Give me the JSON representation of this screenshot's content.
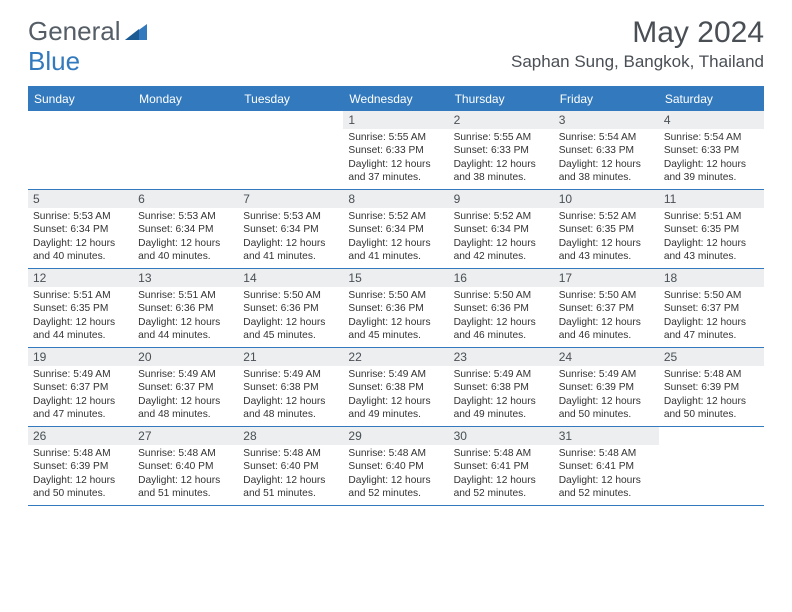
{
  "logo": {
    "general": "General",
    "blue": "Blue"
  },
  "title": "May 2024",
  "location": "Saphan Sung, Bangkok, Thailand",
  "colors": {
    "accent": "#3279bd",
    "header_text": "#ffffff",
    "daynum_bg": "#eceeef",
    "body_text": "#333333",
    "title_text": "#4a4f55"
  },
  "day_names": [
    "Sunday",
    "Monday",
    "Tuesday",
    "Wednesday",
    "Thursday",
    "Friday",
    "Saturday"
  ],
  "weeks": [
    [
      {
        "num": "",
        "lines": []
      },
      {
        "num": "",
        "lines": []
      },
      {
        "num": "",
        "lines": []
      },
      {
        "num": "1",
        "lines": [
          "Sunrise: 5:55 AM",
          "Sunset: 6:33 PM",
          "Daylight: 12 hours and 37 minutes."
        ]
      },
      {
        "num": "2",
        "lines": [
          "Sunrise: 5:55 AM",
          "Sunset: 6:33 PM",
          "Daylight: 12 hours and 38 minutes."
        ]
      },
      {
        "num": "3",
        "lines": [
          "Sunrise: 5:54 AM",
          "Sunset: 6:33 PM",
          "Daylight: 12 hours and 38 minutes."
        ]
      },
      {
        "num": "4",
        "lines": [
          "Sunrise: 5:54 AM",
          "Sunset: 6:33 PM",
          "Daylight: 12 hours and 39 minutes."
        ]
      }
    ],
    [
      {
        "num": "5",
        "lines": [
          "Sunrise: 5:53 AM",
          "Sunset: 6:34 PM",
          "Daylight: 12 hours and 40 minutes."
        ]
      },
      {
        "num": "6",
        "lines": [
          "Sunrise: 5:53 AM",
          "Sunset: 6:34 PM",
          "Daylight: 12 hours and 40 minutes."
        ]
      },
      {
        "num": "7",
        "lines": [
          "Sunrise: 5:53 AM",
          "Sunset: 6:34 PM",
          "Daylight: 12 hours and 41 minutes."
        ]
      },
      {
        "num": "8",
        "lines": [
          "Sunrise: 5:52 AM",
          "Sunset: 6:34 PM",
          "Daylight: 12 hours and 41 minutes."
        ]
      },
      {
        "num": "9",
        "lines": [
          "Sunrise: 5:52 AM",
          "Sunset: 6:34 PM",
          "Daylight: 12 hours and 42 minutes."
        ]
      },
      {
        "num": "10",
        "lines": [
          "Sunrise: 5:52 AM",
          "Sunset: 6:35 PM",
          "Daylight: 12 hours and 43 minutes."
        ]
      },
      {
        "num": "11",
        "lines": [
          "Sunrise: 5:51 AM",
          "Sunset: 6:35 PM",
          "Daylight: 12 hours and 43 minutes."
        ]
      }
    ],
    [
      {
        "num": "12",
        "lines": [
          "Sunrise: 5:51 AM",
          "Sunset: 6:35 PM",
          "Daylight: 12 hours and 44 minutes."
        ]
      },
      {
        "num": "13",
        "lines": [
          "Sunrise: 5:51 AM",
          "Sunset: 6:36 PM",
          "Daylight: 12 hours and 44 minutes."
        ]
      },
      {
        "num": "14",
        "lines": [
          "Sunrise: 5:50 AM",
          "Sunset: 6:36 PM",
          "Daylight: 12 hours and 45 minutes."
        ]
      },
      {
        "num": "15",
        "lines": [
          "Sunrise: 5:50 AM",
          "Sunset: 6:36 PM",
          "Daylight: 12 hours and 45 minutes."
        ]
      },
      {
        "num": "16",
        "lines": [
          "Sunrise: 5:50 AM",
          "Sunset: 6:36 PM",
          "Daylight: 12 hours and 46 minutes."
        ]
      },
      {
        "num": "17",
        "lines": [
          "Sunrise: 5:50 AM",
          "Sunset: 6:37 PM",
          "Daylight: 12 hours and 46 minutes."
        ]
      },
      {
        "num": "18",
        "lines": [
          "Sunrise: 5:50 AM",
          "Sunset: 6:37 PM",
          "Daylight: 12 hours and 47 minutes."
        ]
      }
    ],
    [
      {
        "num": "19",
        "lines": [
          "Sunrise: 5:49 AM",
          "Sunset: 6:37 PM",
          "Daylight: 12 hours and 47 minutes."
        ]
      },
      {
        "num": "20",
        "lines": [
          "Sunrise: 5:49 AM",
          "Sunset: 6:37 PM",
          "Daylight: 12 hours and 48 minutes."
        ]
      },
      {
        "num": "21",
        "lines": [
          "Sunrise: 5:49 AM",
          "Sunset: 6:38 PM",
          "Daylight: 12 hours and 48 minutes."
        ]
      },
      {
        "num": "22",
        "lines": [
          "Sunrise: 5:49 AM",
          "Sunset: 6:38 PM",
          "Daylight: 12 hours and 49 minutes."
        ]
      },
      {
        "num": "23",
        "lines": [
          "Sunrise: 5:49 AM",
          "Sunset: 6:38 PM",
          "Daylight: 12 hours and 49 minutes."
        ]
      },
      {
        "num": "24",
        "lines": [
          "Sunrise: 5:49 AM",
          "Sunset: 6:39 PM",
          "Daylight: 12 hours and 50 minutes."
        ]
      },
      {
        "num": "25",
        "lines": [
          "Sunrise: 5:48 AM",
          "Sunset: 6:39 PM",
          "Daylight: 12 hours and 50 minutes."
        ]
      }
    ],
    [
      {
        "num": "26",
        "lines": [
          "Sunrise: 5:48 AM",
          "Sunset: 6:39 PM",
          "Daylight: 12 hours and 50 minutes."
        ]
      },
      {
        "num": "27",
        "lines": [
          "Sunrise: 5:48 AM",
          "Sunset: 6:40 PM",
          "Daylight: 12 hours and 51 minutes."
        ]
      },
      {
        "num": "28",
        "lines": [
          "Sunrise: 5:48 AM",
          "Sunset: 6:40 PM",
          "Daylight: 12 hours and 51 minutes."
        ]
      },
      {
        "num": "29",
        "lines": [
          "Sunrise: 5:48 AM",
          "Sunset: 6:40 PM",
          "Daylight: 12 hours and 52 minutes."
        ]
      },
      {
        "num": "30",
        "lines": [
          "Sunrise: 5:48 AM",
          "Sunset: 6:41 PM",
          "Daylight: 12 hours and 52 minutes."
        ]
      },
      {
        "num": "31",
        "lines": [
          "Sunrise: 5:48 AM",
          "Sunset: 6:41 PM",
          "Daylight: 12 hours and 52 minutes."
        ]
      },
      {
        "num": "",
        "lines": []
      }
    ]
  ]
}
